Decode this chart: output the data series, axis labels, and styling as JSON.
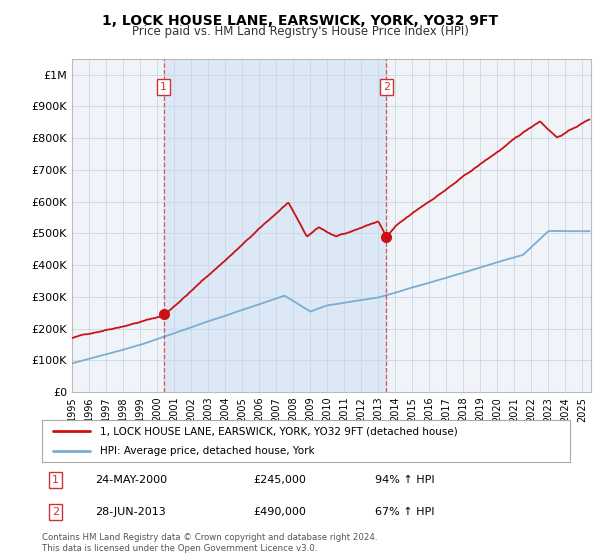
{
  "title": "1, LOCK HOUSE LANE, EARSWICK, YORK, YO32 9FT",
  "subtitle": "Price paid vs. HM Land Registry's House Price Index (HPI)",
  "legend_line1": "1, LOCK HOUSE LANE, EARSWICK, YORK, YO32 9FT (detached house)",
  "legend_line2": "HPI: Average price, detached house, York",
  "annotation1_date": "24-MAY-2000",
  "annotation1_price": "£245,000",
  "annotation1_hpi": "94% ↑ HPI",
  "annotation2_date": "28-JUN-2013",
  "annotation2_price": "£490,000",
  "annotation2_hpi": "67% ↑ HPI",
  "footnote1": "Contains HM Land Registry data © Crown copyright and database right 2024.",
  "footnote2": "This data is licensed under the Open Government Licence v3.0.",
  "sale1_year": 2000.38,
  "sale1_value": 245000,
  "sale2_year": 2013.48,
  "sale2_value": 490000,
  "hpi_color": "#7aadd4",
  "property_color": "#cc1111",
  "dashed_color": "#cc3333",
  "background_color": "#ffffff",
  "plot_bg_color": "#f0f4f8",
  "shade_color": "#dce8f5",
  "grid_color": "#c8d8e8",
  "ylim_min": 0,
  "ylim_max": 1050000,
  "xmin": 1995,
  "xmax": 2025.5
}
